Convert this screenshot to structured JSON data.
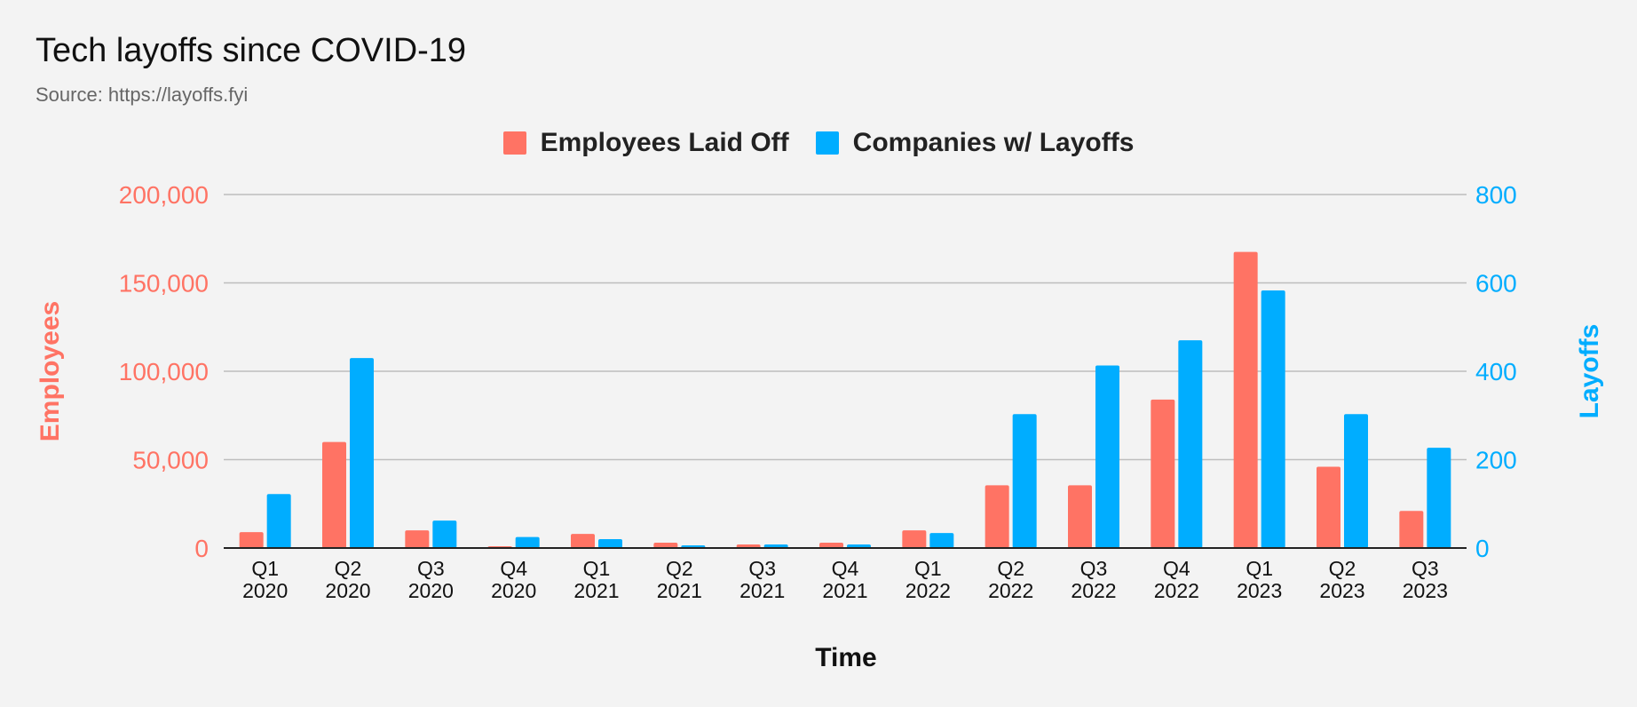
{
  "colors": {
    "employees": "#ff7364",
    "companies": "#00adff",
    "grid": "#bdbdbd",
    "axis": "#222222",
    "background": "#f3f3f3"
  },
  "chart_data": {
    "type": "bar",
    "title": "Tech layoffs since COVID-19",
    "subtitle": "Source: https://layoffs.fyi",
    "xlabel": "Time",
    "ylabel_left": "Employees",
    "ylabel_right": "Layoffs",
    "legend_position": "top-center",
    "grid": true,
    "categories": [
      [
        "Q1",
        "2020"
      ],
      [
        "Q2",
        "2020"
      ],
      [
        "Q3",
        "2020"
      ],
      [
        "Q4",
        "2020"
      ],
      [
        "Q1",
        "2021"
      ],
      [
        "Q2",
        "2021"
      ],
      [
        "Q3",
        "2021"
      ],
      [
        "Q4",
        "2021"
      ],
      [
        "Q1",
        "2022"
      ],
      [
        "Q2",
        "2022"
      ],
      [
        "Q3",
        "2022"
      ],
      [
        "Q4",
        "2022"
      ],
      [
        "Q1",
        "2023"
      ],
      [
        "Q2",
        "2023"
      ],
      [
        "Q3",
        "2023"
      ]
    ],
    "series": [
      {
        "name": "Employees Laid Off",
        "axis": "left",
        "values": [
          9000,
          60000,
          10000,
          1000,
          8000,
          3000,
          2000,
          3000,
          10000,
          35500,
          35500,
          84000,
          167500,
          46000,
          21000
        ]
      },
      {
        "name": "Companies w/ Layoffs",
        "axis": "right",
        "values": [
          122,
          430,
          62,
          25,
          20,
          6,
          8,
          8,
          34,
          303,
          413,
          470,
          583,
          303,
          227
        ]
      }
    ],
    "ylim_left": [
      0,
      200000
    ],
    "ylim_right": [
      0,
      800
    ],
    "yticks_left": [
      "0",
      "50,000",
      "100,000",
      "150,000",
      "200,000"
    ],
    "yticks_right": [
      "0",
      "200",
      "400",
      "600",
      "800"
    ]
  }
}
